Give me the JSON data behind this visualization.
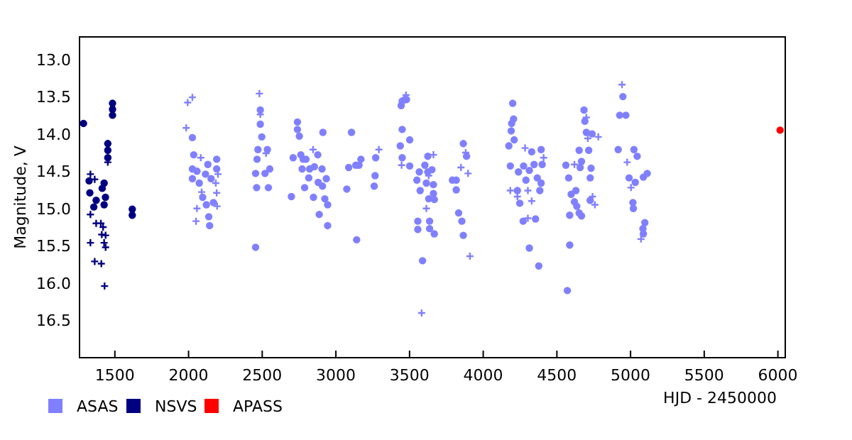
{
  "chart_data": {
    "type": "scatter",
    "xlabel": "HJD - 2450000",
    "ylabel": "Magnitude, V",
    "xlim": [
      1260,
      6050
    ],
    "ylim": [
      17.0,
      12.7
    ],
    "xticks": [
      1500,
      2000,
      2500,
      3000,
      3500,
      4000,
      4500,
      5000,
      5500,
      6000
    ],
    "yticks": [
      {
        "value": 13,
        "label": "13.0"
      },
      {
        "value": 13.5,
        "label": "13.5"
      },
      {
        "value": 14,
        "label": "14.0"
      },
      {
        "value": 14.5,
        "label": "14.5"
      },
      {
        "value": 15,
        "label": "15.0"
      },
      {
        "value": 15.5,
        "label": "15.5"
      },
      {
        "value": 16,
        "label": "16.0"
      },
      {
        "value": 16.5,
        "label": "16.5"
      }
    ],
    "grid": false,
    "legend": "bottom left",
    "series": [
      {
        "name": "ASAS",
        "color": "#8080ff",
        "marker": "circle",
        "x": [
          2026,
          2035,
          2026,
          2026,
          2057,
          2073,
          2096,
          2121,
          2115,
          2131,
          2137,
          2143,
          2153,
          2169,
          2191,
          2191,
          2455,
          2462,
          2455,
          2465,
          2471,
          2487,
          2487,
          2497,
          2519,
          2535,
          2542,
          2551,
          2698,
          2710,
          2739,
          2739,
          2752,
          2762,
          2771,
          2778,
          2788,
          2797,
          2816,
          2822,
          2848,
          2854,
          2877,
          2880,
          2887,
          2906,
          2912,
          2909,
          2925,
          2935,
          2944,
          2944,
          3074,
          3087,
          3106,
          3135,
          3141,
          3157,
          3170,
          3260,
          3266,
          3270,
          3443,
          3450,
          3469,
          3479,
          3450,
          3437,
          3450,
          3501,
          3501,
          3550,
          3566,
          3572,
          3556,
          3556,
          3588,
          3604,
          3614,
          3624,
          3624,
          3630,
          3636,
          3636,
          3652,
          3662,
          3662,
          3668,
          3668,
          3791,
          3817,
          3817,
          3833,
          3855,
          3865,
          3865,
          3887,
          4174,
          4190,
          4193,
          4206,
          4200,
          4210,
          4184,
          4239,
          4274,
          4290,
          4232,
          4248,
          4271,
          4313,
          4329,
          4313,
          4345,
          4355,
          4367,
          4377,
          4393,
          4384,
          4400,
          4393,
          4561,
          4571,
          4580,
          4587,
          4587,
          4597,
          4619,
          4629,
          4635,
          4651,
          4658,
          4651,
          4667,
          4667,
          4684,
          4690,
          4700,
          4716,
          4726,
          4732,
          4739,
          4726,
          4916,
          4926,
          4948,
          4968,
          5023,
          5045,
          4990,
          5032,
          5019,
          5016,
          5084,
          5087,
          5097,
          5113,
          5087
        ],
        "values": [
          14.05,
          14.28,
          14.47,
          14.6,
          14.5,
          14.66,
          14.85,
          14.95,
          14.54,
          14.41,
          15.11,
          15.23,
          14.6,
          14.92,
          14.47,
          14.34,
          15.52,
          14.72,
          14.53,
          14.34,
          14.21,
          13.87,
          13.68,
          14.04,
          14.53,
          14.21,
          14.72,
          14.47,
          14.84,
          14.32,
          13.84,
          13.94,
          14.03,
          14.28,
          14.47,
          14.34,
          14.72,
          14.34,
          14.59,
          14.47,
          14.85,
          14.44,
          14.28,
          14.65,
          15.08,
          14.47,
          13.98,
          14.7,
          14.87,
          14.6,
          14.95,
          15.23,
          14.74,
          14.45,
          13.98,
          14.42,
          15.42,
          14.42,
          14.34,
          14.7,
          14.56,
          14.32,
          13.62,
          13.56,
          13.54,
          13.54,
          13.94,
          14.16,
          14.32,
          14.08,
          14.43,
          14.62,
          14.51,
          14.76,
          15.17,
          15.28,
          15.7,
          14.42,
          14.66,
          14.3,
          14.51,
          14.87,
          15.17,
          15.27,
          14.48,
          14.68,
          14.8,
          14.88,
          15.34,
          14.62,
          14.62,
          14.75,
          15.06,
          15.17,
          15.36,
          14.13,
          14.3,
          14.16,
          13.96,
          13.86,
          13.8,
          13.59,
          14.08,
          14.43,
          14.51,
          14.43,
          14.62,
          14.76,
          14.93,
          15.17,
          15.53,
          14.24,
          14.49,
          14.41,
          15.14,
          14.59,
          15.77,
          14.21,
          14.76,
          14.41,
          14.66,
          14.42,
          16.1,
          14.59,
          15.09,
          15.49,
          14.81,
          14.91,
          14.76,
          14.97,
          14.22,
          14.45,
          15.06,
          14.37,
          15.1,
          13.68,
          13.83,
          13.98,
          14.22,
          14.59,
          14.46,
          14,
          14.89,
          14.21,
          13.75,
          13.5,
          13.75,
          14.21,
          14.3,
          14.59,
          14.65,
          15,
          14.92,
          15.27,
          15.34,
          15.19,
          14.53,
          14.58
        ]
      },
      {
        "color": "#8080ff",
        "marker": "cross",
        "x": [
          1994,
          2026,
          1984,
          2083,
          2089,
          2057,
          2051,
          2185,
          2191,
          2194,
          2200,
          2481,
          2487,
          2526,
          2845,
          3292,
          3446,
          3476,
          3582,
          3614,
          3630,
          3662,
          3849,
          3881,
          3897,
          3910,
          4184,
          4284,
          4303,
          4232,
          4329,
          4410,
          4303,
          4619,
          4700,
          4710,
          4742,
          4758,
          4781,
          4942,
          4977,
          5003,
          5071
        ],
        "values": [
          13.58,
          13.51,
          13.92,
          14.32,
          14.78,
          15,
          15.17,
          14.66,
          14.79,
          14.97,
          14.54,
          13.46,
          13.74,
          14.26,
          14.21,
          14.21,
          14.42,
          13.48,
          16.4,
          15,
          14.56,
          14.28,
          14.45,
          14.25,
          14.53,
          15.64,
          14.76,
          14.19,
          14.76,
          14.84,
          14.9,
          14.32,
          15.13,
          14.41,
          13.78,
          14.06,
          14.84,
          14.95,
          14.04,
          13.34,
          14.38,
          14.72,
          15.41
        ]
      },
      {
        "name": "NSVS",
        "color": "#000080",
        "marker": "circle",
        "x": [
          1287,
          1325,
          1330,
          1357,
          1373,
          1414,
          1427,
          1436,
          1427,
          1452,
          1452,
          1452,
          1484,
          1484,
          1484,
          1618,
          1618
        ],
        "values": [
          13.86,
          14.63,
          14.79,
          14.98,
          14.89,
          14.73,
          14.66,
          14.85,
          14.95,
          14.13,
          14.22,
          14.32,
          13.59,
          13.67,
          13.75,
          15.01,
          15.09
        ]
      },
      {
        "color": "#000080",
        "marker": "cross",
        "x": [
          1334,
          1334,
          1334,
          1363,
          1373,
          1363,
          1405,
          1408,
          1411,
          1420,
          1427,
          1430,
          1437,
          1452,
          1437
        ],
        "values": [
          14.54,
          15.08,
          15.46,
          14.61,
          15.2,
          15.71,
          15.2,
          15.74,
          15.35,
          15.25,
          15.46,
          16.04,
          15.36,
          14.38,
          15.52
        ]
      },
      {
        "name": "APASS",
        "color": "#ff0000",
        "marker": "circle",
        "x": [
          6015
        ],
        "values": [
          13.95
        ]
      }
    ]
  }
}
